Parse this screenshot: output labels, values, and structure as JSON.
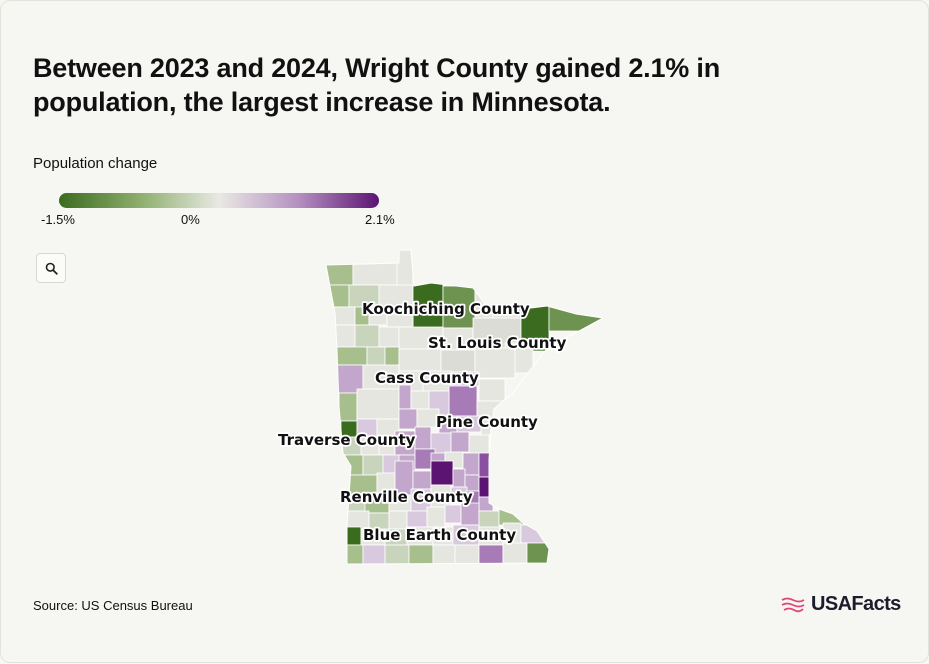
{
  "title": "Between 2023 and 2024, Wright County gained 2.1% in population, the largest increase in Minnesota.",
  "legend": {
    "title": "Population change",
    "min_label": "-1.5%",
    "mid_label": "0%",
    "max_label": "2.1%",
    "colors": [
      "#3b6b1e",
      "#8cad6c",
      "#e9e9e4",
      "#b48fc0",
      "#5c1473"
    ]
  },
  "zoom_icon": "search-icon",
  "chart_data": {
    "type": "choropleth",
    "region": "Minnesota counties",
    "metric": "Population change, 2023–2024",
    "value_range": [
      -1.5,
      2.1
    ],
    "labeled_counties": [
      {
        "name": "Koochiching County"
      },
      {
        "name": "St. Louis County"
      },
      {
        "name": "Cass County"
      },
      {
        "name": "Pine County"
      },
      {
        "name": "Traverse County"
      },
      {
        "name": "Renville County"
      },
      {
        "name": "Blue Earth County"
      }
    ],
    "highlight": {
      "name": "Wright County",
      "value": 2.1
    }
  },
  "source": "Source: US Census Bureau",
  "logo": {
    "text": "USAFacts",
    "color": "#e0457b"
  }
}
